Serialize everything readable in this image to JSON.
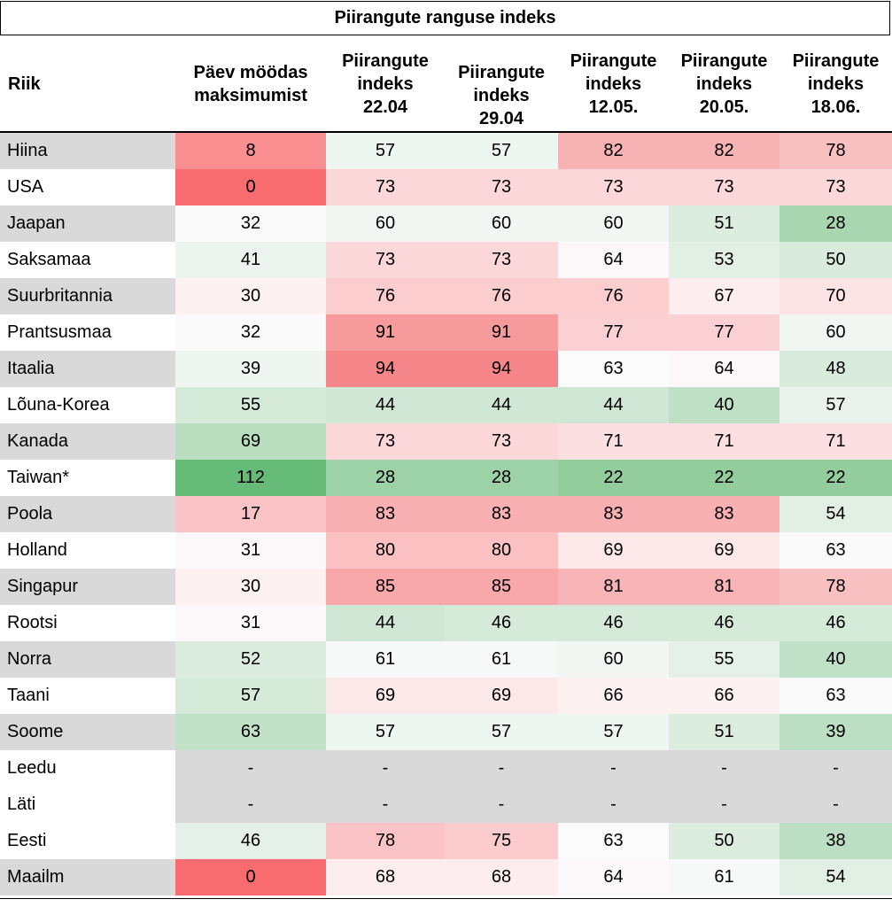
{
  "table": {
    "title": "Piirangute ranguse indeks",
    "headers": [
      "Riik",
      "Päev möödas\nmaksimumist",
      "Piirangute\nindeks\n22.04",
      "Piirangute\nindeks\n29.04",
      "Piirangute\nindeks\n12.05.",
      "Piirangute\nindeks\n20.05.",
      "Piirangute\nindeks\n18.06."
    ],
    "rows": [
      {
        "name": "Hiina",
        "values": [
          "8",
          "57",
          "57",
          "82",
          "82",
          "78"
        ]
      },
      {
        "name": "USA",
        "values": [
          "0",
          "73",
          "73",
          "73",
          "73",
          "73"
        ]
      },
      {
        "name": "Jaapan",
        "values": [
          "32",
          "60",
          "60",
          "60",
          "51",
          "28"
        ]
      },
      {
        "name": "Saksamaa",
        "values": [
          "41",
          "73",
          "73",
          "64",
          "53",
          "50"
        ]
      },
      {
        "name": "Suurbritannia",
        "values": [
          "30",
          "76",
          "76",
          "76",
          "67",
          "70"
        ]
      },
      {
        "name": "Prantsusmaa",
        "values": [
          "32",
          "91",
          "91",
          "77",
          "77",
          "60"
        ]
      },
      {
        "name": "Itaalia",
        "values": [
          "39",
          "94",
          "94",
          "63",
          "64",
          "48"
        ]
      },
      {
        "name": "Lõuna-Korea",
        "values": [
          "55",
          "44",
          "44",
          "44",
          "40",
          "57"
        ]
      },
      {
        "name": "Kanada",
        "values": [
          "69",
          "73",
          "73",
          "71",
          "71",
          "71"
        ]
      },
      {
        "name": "Taiwan*",
        "values": [
          "112",
          "28",
          "28",
          "22",
          "22",
          "22"
        ]
      },
      {
        "name": "Poola",
        "values": [
          "17",
          "83",
          "83",
          "83",
          "83",
          "54"
        ]
      },
      {
        "name": "Holland",
        "values": [
          "31",
          "80",
          "80",
          "69",
          "69",
          "63"
        ]
      },
      {
        "name": "Singapur",
        "values": [
          "30",
          "85",
          "85",
          "81",
          "81",
          "78"
        ]
      },
      {
        "name": "Rootsi",
        "values": [
          "31",
          "44",
          "46",
          "46",
          "46",
          "46"
        ]
      },
      {
        "name": "Norra",
        "values": [
          "52",
          "61",
          "61",
          "60",
          "55",
          "40"
        ]
      },
      {
        "name": "Taani",
        "values": [
          "57",
          "69",
          "69",
          "66",
          "66",
          "63"
        ]
      },
      {
        "name": "Soome",
        "values": [
          "63",
          "57",
          "57",
          "57",
          "51",
          "39"
        ]
      },
      {
        "name": "Leedu",
        "values": [
          "-",
          "-",
          "-",
          "-",
          "-",
          "-"
        ]
      },
      {
        "name": "Läti",
        "values": [
          "-",
          "-",
          "-",
          "-",
          "-",
          "-"
        ]
      },
      {
        "name": "Eesti",
        "values": [
          "46",
          "78",
          "75",
          "63",
          "50",
          "38"
        ]
      },
      {
        "name": "Maailm",
        "values": [
          "0",
          "68",
          "68",
          "64",
          "61",
          "54"
        ]
      }
    ],
    "name_fill_colors": [
      "#d9d9d9",
      "#ffffff",
      "#d9d9d9",
      "#ffffff",
      "#d9d9d9",
      "#ffffff",
      "#d9d9d9",
      "#ffffff",
      "#d9d9d9",
      "#ffffff",
      "#d9d9d9",
      "#ffffff",
      "#d9d9d9",
      "#ffffff",
      "#d9d9d9",
      "#ffffff",
      "#d9d9d9",
      "#ffffff",
      "#ffffff",
      "#ffffff",
      "#d9d9d9"
    ],
    "missing_fill_color": "#d9d9d9",
    "text_color": "#000000"
  },
  "chart_data": {
    "type": "heatmap",
    "title": "Piirangute ranguse indeks",
    "row_labels": [
      "Hiina",
      "USA",
      "Jaapan",
      "Saksamaa",
      "Suurbritannia",
      "Prantsusmaa",
      "Itaalia",
      "Lõuna-Korea",
      "Kanada",
      "Taiwan*",
      "Poola",
      "Holland",
      "Singapur",
      "Rootsi",
      "Norra",
      "Taani",
      "Soome",
      "Leedu",
      "Läti",
      "Eesti",
      "Maailm"
    ],
    "column_labels": [
      "Päev möödas maksimumist",
      "Piirangute indeks 22.04",
      "Piirangute indeks 29.04",
      "Piirangute indeks 12.05.",
      "Piirangute indeks 20.05.",
      "Piirangute indeks 18.06."
    ],
    "values": [
      [
        8,
        57,
        57,
        82,
        82,
        78
      ],
      [
        0,
        73,
        73,
        73,
        73,
        73
      ],
      [
        32,
        60,
        60,
        60,
        51,
        28
      ],
      [
        41,
        73,
        73,
        64,
        53,
        50
      ],
      [
        30,
        76,
        76,
        76,
        67,
        70
      ],
      [
        32,
        91,
        91,
        77,
        77,
        60
      ],
      [
        39,
        94,
        94,
        63,
        64,
        48
      ],
      [
        55,
        44,
        44,
        44,
        40,
        57
      ],
      [
        69,
        73,
        73,
        71,
        71,
        71
      ],
      [
        112,
        28,
        28,
        22,
        22,
        22
      ],
      [
        17,
        83,
        83,
        83,
        83,
        54
      ],
      [
        31,
        80,
        80,
        69,
        69,
        63
      ],
      [
        30,
        85,
        85,
        81,
        81,
        78
      ],
      [
        31,
        44,
        46,
        46,
        46,
        46
      ],
      [
        52,
        61,
        61,
        60,
        55,
        40
      ],
      [
        57,
        69,
        69,
        66,
        66,
        63
      ],
      [
        63,
        57,
        57,
        57,
        51,
        39
      ],
      [
        null,
        null,
        null,
        null,
        null,
        null
      ],
      [
        null,
        null,
        null,
        null,
        null,
        null
      ],
      [
        46,
        78,
        75,
        63,
        50,
        38
      ],
      [
        0,
        68,
        68,
        64,
        61,
        54
      ]
    ],
    "cell_colors": [
      [
        "#f98f91",
        "#eef6f1",
        "#eef6f1",
        "#f7b2b4",
        "#f7b2b4",
        "#f9c0c2"
      ],
      [
        "#f86b6e",
        "#fbd7d9",
        "#fbd7d9",
        "#fbd7d9",
        "#fbd7d9",
        "#fbd7d9"
      ],
      [
        "#fbfafb",
        "#f3f7f4",
        "#f3f7f4",
        "#f3f7f4",
        "#dcecdf",
        "#a7d6b1"
      ],
      [
        "#ebf4ee",
        "#fbd7d9",
        "#fbd7d9",
        "#fcf8f9",
        "#e2efe5",
        "#d9ebdd"
      ],
      [
        "#fdf1f2",
        "#fbcdcf",
        "#fbcdcf",
        "#fbcdcf",
        "#fcedee",
        "#fce4e5"
      ],
      [
        "#fbfafb",
        "#f79a9c",
        "#f79a9c",
        "#fad0d2",
        "#fad0d2",
        "#f2f6f3"
      ],
      [
        "#eff6f1",
        "#f58689",
        "#f58689",
        "#fcfbfb",
        "#fcf8f9",
        "#d9ebdd"
      ],
      [
        "#d5ead9",
        "#cfe7d4",
        "#cfe7d4",
        "#cfe7d4",
        "#bfe0c5",
        "#e9f3ec"
      ],
      [
        "#b8ddbf",
        "#fbd7d9",
        "#fbd7d9",
        "#fcdfe0",
        "#fcdfe0",
        "#fcdfe0"
      ],
      [
        "#67bb78",
        "#9dd1a7",
        "#9dd1a7",
        "#93cd9d",
        "#93cd9d",
        "#93cd9d"
      ],
      [
        "#fac4c6",
        "#f8b0b2",
        "#f8b0b2",
        "#f8b0b2",
        "#f8b0b2",
        "#e2efe5"
      ],
      [
        "#fcf8f9",
        "#fac0c2",
        "#fac0c2",
        "#fde8e9",
        "#fde8e9",
        "#fbfafb"
      ],
      [
        "#fdf1f2",
        "#f8a7aa",
        "#f8a7aa",
        "#f8b4b6",
        "#f8b4b6",
        "#f9c0c2"
      ],
      [
        "#fcf8f9",
        "#cfe7d4",
        "#d5ead9",
        "#d5ead9",
        "#d5ead9",
        "#d5ead9"
      ],
      [
        "#dcecdf",
        "#f6f9f7",
        "#f6f9f7",
        "#f3f7f4",
        "#e5f1e8",
        "#c0e0c7"
      ],
      [
        "#d5ead9",
        "#fde8e9",
        "#fde8e9",
        "#fdf1f2",
        "#fdf1f2",
        "#fbfafb"
      ],
      [
        "#c2e2c8",
        "#eef6f1",
        "#eef6f1",
        "#eef6f1",
        "#dcecdf",
        "#bcdec3"
      ],
      [
        "#d9d9d9",
        "#d9d9d9",
        "#d9d9d9",
        "#d9d9d9",
        "#d9d9d9",
        "#d9d9d9"
      ],
      [
        "#d9d9d9",
        "#d9d9d9",
        "#d9d9d9",
        "#d9d9d9",
        "#d9d9d9",
        "#d9d9d9"
      ],
      [
        "#e5f1e8",
        "#fac3c5",
        "#fbcbcd",
        "#fcfbfb",
        "#dcecdf",
        "#bcdec3"
      ],
      [
        "#f86b6e",
        "#fdedee",
        "#fdedee",
        "#fcf8f9",
        "#f6f9f7",
        "#e2efe5"
      ]
    ]
  }
}
